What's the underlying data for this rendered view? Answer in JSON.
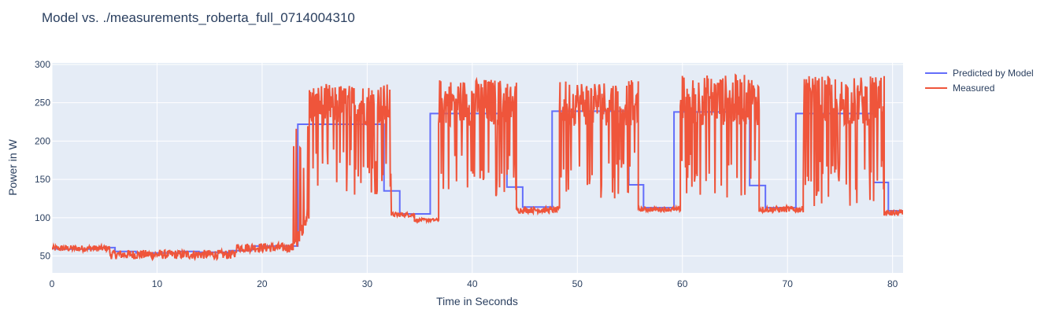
{
  "chart_data": {
    "type": "line",
    "title": "Model vs. ./measurements_roberta_full_0714004310",
    "xlabel": "Time in Seconds",
    "ylabel": "Power in W",
    "xlim": [
      0,
      81
    ],
    "ylim": [
      28,
      302
    ],
    "xticks": [
      0,
      10,
      20,
      30,
      40,
      50,
      60,
      70,
      80
    ],
    "yticks": [
      50,
      100,
      150,
      200,
      250,
      300
    ],
    "grid": true,
    "legend_position": "top-right",
    "colors": {
      "predicted": "#636efa",
      "measured": "#ef553b",
      "plot_bg": "#e5ecf6"
    },
    "series": [
      {
        "name": "Predicted by Model",
        "step": true,
        "points": [
          [
            0,
            60
          ],
          [
            0.5,
            59
          ],
          [
            4,
            61
          ],
          [
            6,
            56
          ],
          [
            8,
            54
          ],
          [
            12,
            56
          ],
          [
            14,
            55
          ],
          [
            17,
            57
          ],
          [
            19,
            63
          ],
          [
            23,
            63
          ],
          [
            23.4,
            222
          ],
          [
            31.6,
            222
          ],
          [
            31.6,
            135
          ],
          [
            33.1,
            135
          ],
          [
            33.1,
            105
          ],
          [
            36,
            105
          ],
          [
            36,
            236
          ],
          [
            43.3,
            236
          ],
          [
            43.3,
            140
          ],
          [
            44.8,
            140
          ],
          [
            44.8,
            114
          ],
          [
            47.6,
            114
          ],
          [
            47.6,
            239
          ],
          [
            54.9,
            239
          ],
          [
            54.9,
            143
          ],
          [
            56.3,
            143
          ],
          [
            56.3,
            113
          ],
          [
            59.2,
            113
          ],
          [
            59.2,
            238
          ],
          [
            66.4,
            238
          ],
          [
            66.4,
            142
          ],
          [
            67.9,
            142
          ],
          [
            67.9,
            113
          ],
          [
            70.8,
            113
          ],
          [
            70.8,
            236
          ],
          [
            78.2,
            236
          ],
          [
            78.2,
            146
          ],
          [
            79.6,
            146
          ],
          [
            79.6,
            109
          ],
          [
            81,
            109
          ]
        ]
      },
      {
        "name": "Measured",
        "segments": [
          {
            "x0": 0,
            "x1": 5.5,
            "base": 60,
            "jitter": 4
          },
          {
            "x0": 5.5,
            "x1": 17.5,
            "base": 52,
            "jitter": 6
          },
          {
            "x0": 17.5,
            "x1": 23,
            "base": 61,
            "jitter": 6
          },
          {
            "x0": 23,
            "x1": 24.5,
            "ramp": [
              60,
              110
            ]
          },
          {
            "x0": 24.5,
            "x1": 32.3,
            "base": 240,
            "spikes": [
              130,
              275
            ]
          },
          {
            "x0": 32.3,
            "x1": 34.5,
            "base": 104,
            "jitter": 3
          },
          {
            "x0": 34.5,
            "x1": 36.8,
            "base": 97,
            "jitter": 2
          },
          {
            "x0": 36.8,
            "x1": 44.2,
            "base": 240,
            "spikes": [
              125,
              282
            ]
          },
          {
            "x0": 44.2,
            "x1": 48.3,
            "base": 110,
            "jitter": 4
          },
          {
            "x0": 48.3,
            "x1": 55.8,
            "base": 240,
            "spikes": [
              125,
              280
            ]
          },
          {
            "x0": 55.8,
            "x1": 59.8,
            "base": 111,
            "jitter": 3
          },
          {
            "x0": 59.8,
            "x1": 67.3,
            "base": 240,
            "spikes": [
              125,
              287
            ]
          },
          {
            "x0": 67.3,
            "x1": 71.5,
            "base": 111,
            "jitter": 4
          },
          {
            "x0": 71.5,
            "x1": 79.2,
            "base": 240,
            "spikes": [
              115,
              285
            ]
          },
          {
            "x0": 79.2,
            "x1": 81,
            "base": 106,
            "jitter": 4
          }
        ]
      }
    ]
  }
}
